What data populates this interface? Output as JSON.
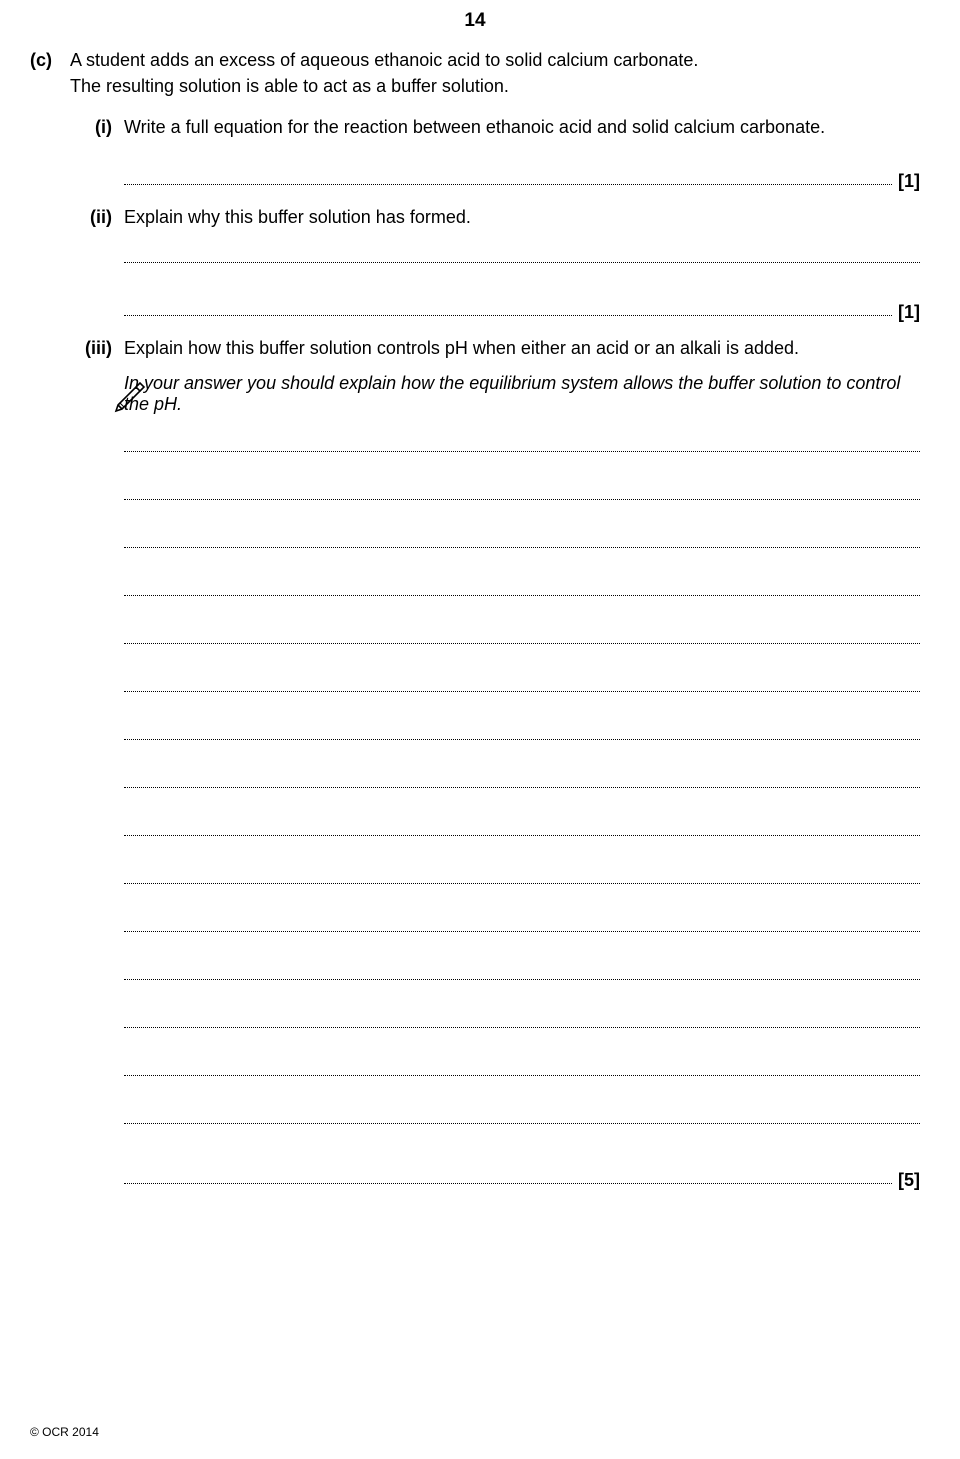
{
  "page_number": "14",
  "part_c": {
    "label": "(c)",
    "text_line1": "A student adds an excess of aqueous ethanoic acid to solid calcium carbonate.",
    "text_line2": "The resulting solution is able to act as a buffer solution."
  },
  "sub_i": {
    "label": "(i)",
    "text": "Write a full equation for the reaction between ethanoic acid and solid calcium carbonate.",
    "mark": "[1]"
  },
  "sub_ii": {
    "label": "(ii)",
    "text": "Explain why this buffer solution has formed.",
    "mark": "[1]"
  },
  "sub_iii": {
    "label": "(iii)",
    "text": "Explain how this buffer solution controls pH when either an acid or an alkali is added.",
    "instruction": "In your answer you should explain how the equilibrium system allows the buffer solution to control the pH.",
    "mark": "[5]",
    "answer_lines": 16
  },
  "footer": "© OCR 2014",
  "icons": {
    "pencil_stroke": "#000000"
  }
}
